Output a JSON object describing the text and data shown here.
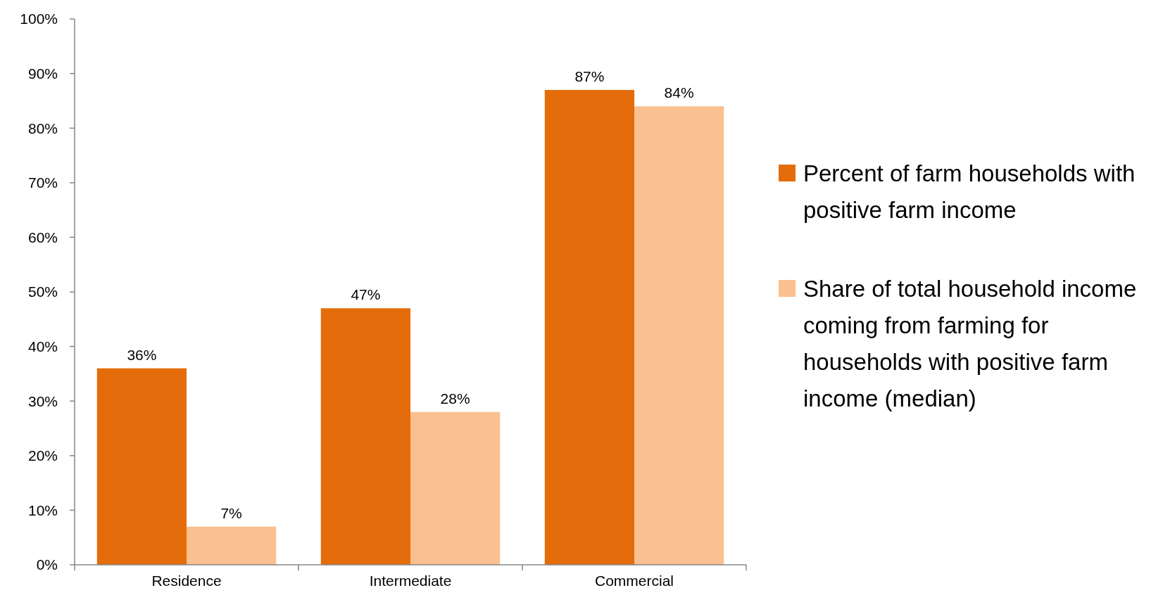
{
  "chart_data": {
    "type": "bar",
    "categories": [
      "Residence",
      "Intermediate",
      "Commercial"
    ],
    "series": [
      {
        "name": "Percent of farm households with positive farm income",
        "color": "#e46c0a",
        "values": [
          36,
          47,
          87
        ],
        "value_labels": [
          "36%",
          "47%",
          "87%"
        ]
      },
      {
        "name": "Share of total household income coming from farming for households with positive farm income (median)",
        "color": "#fac090",
        "values": [
          7,
          28,
          84
        ],
        "value_labels": [
          "7%",
          "28%",
          "84%"
        ]
      }
    ],
    "ylim": [
      0,
      100
    ],
    "yticks": [
      {
        "value": 0,
        "label": "0%"
      },
      {
        "value": 10,
        "label": "10%"
      },
      {
        "value": 20,
        "label": "20%"
      },
      {
        "value": 30,
        "label": "30%"
      },
      {
        "value": 40,
        "label": "40%"
      },
      {
        "value": 50,
        "label": "50%"
      },
      {
        "value": 60,
        "label": "60%"
      },
      {
        "value": 70,
        "label": "70%"
      },
      {
        "value": 80,
        "label": "80%"
      },
      {
        "value": 90,
        "label": "90%"
      },
      {
        "value": 100,
        "label": "100%"
      }
    ],
    "grid": false,
    "legend": "right"
  }
}
